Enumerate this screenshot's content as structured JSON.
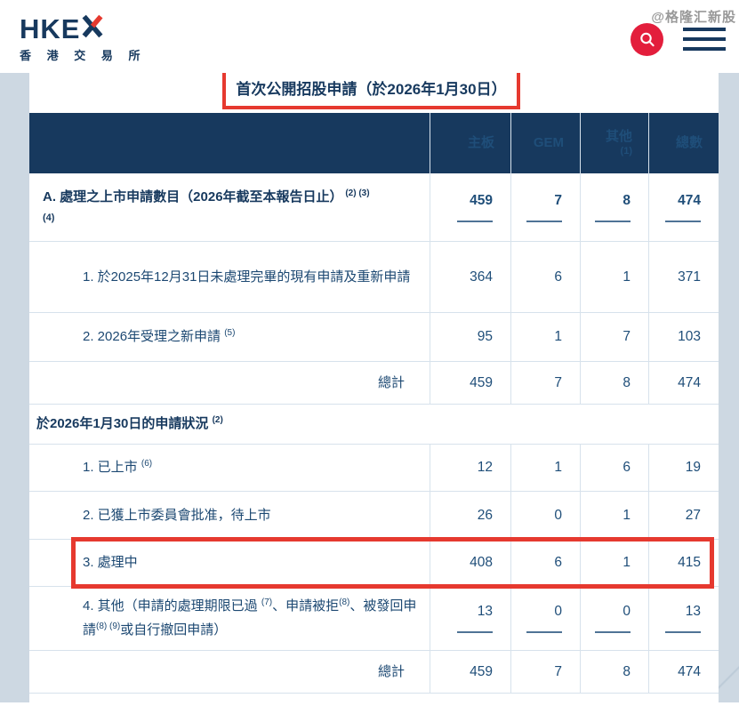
{
  "brand": {
    "wordmark": "HKE",
    "wordmark_x": "X",
    "subtitle": "香 港 交 易 所"
  },
  "watermark": "@格隆汇新股",
  "title": "首次公開招股申請（於2026年1月30日）",
  "colors": {
    "navy": "#17395e",
    "highlight_red": "#e6392f",
    "search_button_red": "#e31e3c",
    "page_margin": "#cdd8e2"
  },
  "icons": {
    "search": "magnifier",
    "menu": "hamburger"
  },
  "table": {
    "columns": [
      {
        "label": "主板"
      },
      {
        "label": "GEM"
      },
      {
        "label": "其他",
        "sup": "(1)"
      },
      {
        "label": "總數"
      }
    ],
    "rows": [
      {
        "label_rich": [
          {
            "t": "text",
            "v": "A. 處理之上市申請數目（2026年截至本報告日止）"
          },
          {
            "t": "sup",
            "v": " (2) (3)"
          },
          {
            "t": "br"
          },
          {
            "t": "small",
            "v": "(4)"
          }
        ],
        "values": [
          "459",
          "7",
          "8",
          "474"
        ],
        "underline": true
      },
      {
        "label_rich": [
          {
            "t": "text",
            "v": "1. 於2025年12月31日未處理完畢的現有申請及重新申請"
          }
        ],
        "values": [
          "364",
          "6",
          "1",
          "371"
        ]
      },
      {
        "label_rich": [
          {
            "t": "text",
            "v": "2. 2026年受理之新申請 "
          },
          {
            "t": "sup",
            "v": "(5)"
          }
        ],
        "values": [
          "95",
          "1",
          "7",
          "103"
        ]
      },
      {
        "label": "總計",
        "values": [
          "459",
          "7",
          "8",
          "474"
        ]
      },
      {
        "label_rich": [
          {
            "t": "text",
            "v": "於2026年1月30日的申請狀況 "
          },
          {
            "t": "sup",
            "v": "(2)"
          }
        ],
        "section": true
      },
      {
        "label_rich": [
          {
            "t": "text",
            "v": "1. 已上市 "
          },
          {
            "t": "sup",
            "v": "(6)"
          }
        ],
        "values": [
          "12",
          "1",
          "6",
          "19"
        ]
      },
      {
        "label_rich": [
          {
            "t": "text",
            "v": "2. 已獲上市委員會批准，待上市"
          }
        ],
        "values": [
          "26",
          "0",
          "1",
          "27"
        ]
      },
      {
        "label_rich": [
          {
            "t": "text",
            "v": "3. 處理中"
          }
        ],
        "values": [
          "408",
          "6",
          "1",
          "415"
        ],
        "highlighted": true
      },
      {
        "label_rich": [
          {
            "t": "text",
            "v": "4. 其他（申請的處理期限已過 "
          },
          {
            "t": "sup",
            "v": "(7)"
          },
          {
            "t": "text",
            "v": "、申請被拒"
          },
          {
            "t": "sup",
            "v": "(8)"
          },
          {
            "t": "text",
            "v": "、被發回申請"
          },
          {
            "t": "sup",
            "v": "(8) (9)"
          },
          {
            "t": "text",
            "v": "或自行撤回申請）"
          }
        ],
        "values": [
          "13",
          "0",
          "0",
          "13"
        ],
        "underline": true
      },
      {
        "label": "總計",
        "values": [
          "459",
          "7",
          "8",
          "474"
        ]
      }
    ]
  }
}
